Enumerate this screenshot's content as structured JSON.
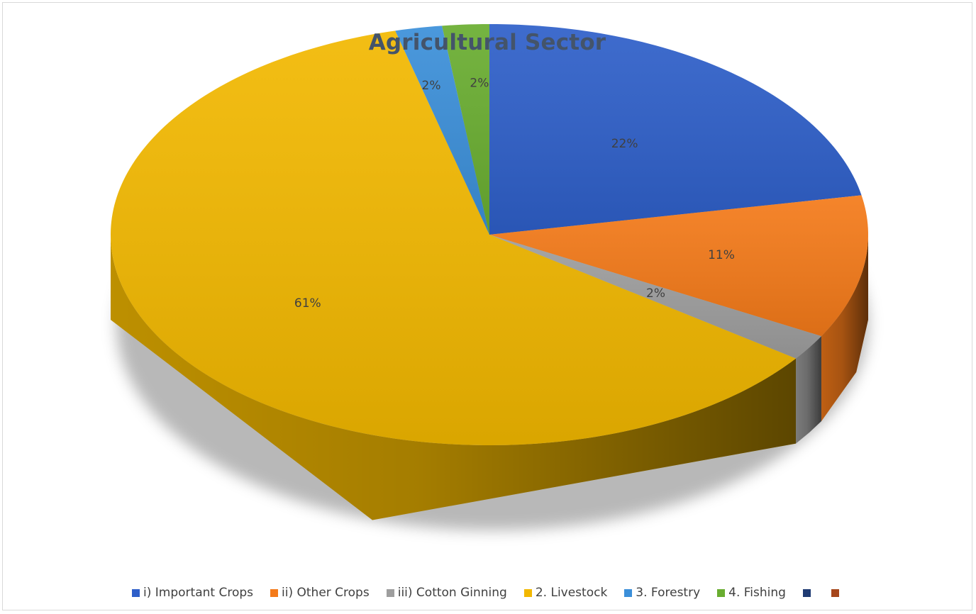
{
  "chart_data": {
    "type": "pie",
    "variant": "3d",
    "title": "Agricultural Sector",
    "categories": [
      "i) Important Crops",
      "ii) Other Crops",
      "iii) Cotton Ginning",
      "2. Livestock",
      "3. Forestry",
      "4. Fishing",
      "",
      ""
    ],
    "values": [
      22,
      11,
      2,
      61,
      2,
      2,
      0,
      0
    ],
    "data_labels": [
      "22%",
      "11%",
      "2%",
      "61%",
      "2%",
      "2%",
      "",
      ""
    ],
    "colors": [
      "#2e5fc9",
      "#f47a19",
      "#9e9e9e",
      "#f2b800",
      "#3b8fd9",
      "#69ad30",
      "#1f3b73",
      "#a6461b"
    ],
    "legend_position": "bottom"
  }
}
